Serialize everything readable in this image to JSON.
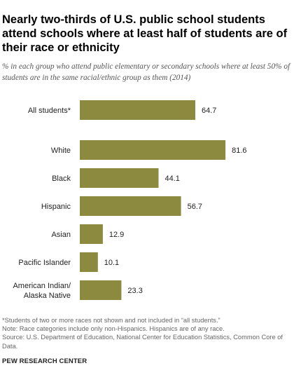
{
  "title": "Nearly two-thirds of U.S. public school students attend schools where at least half of students are of their race or ethnicity",
  "subtitle": "% in each group who attend public elementary or secondary schools where at least 50% of students are in the same racial/ethnic group as them (2014)",
  "notes": [
    "*Students of two or more races not shown and not included in “all students.”",
    "Note: Race categories include only non-Hispanics. Hispanics are of any race.",
    "Source: U.S. Department of Education, National Center for Education Statistics, Common Core of Data."
  ],
  "brand": "PEW RESEARCH CENTER",
  "colors": {
    "bar": "#8c8a3e",
    "label": "#222222"
  },
  "chart_data": {
    "type": "bar",
    "orientation": "horizontal",
    "categories": [
      [
        "All students*"
      ],
      [
        "White"
      ],
      [
        "Black"
      ],
      [
        "Hispanic"
      ],
      [
        "Asian"
      ],
      [
        "Pacific Islander"
      ],
      [
        "American Indian/",
        "Alaska Native"
      ]
    ],
    "values": [
      64.7,
      81.6,
      44.1,
      56.7,
      12.9,
      10.1,
      23.3
    ],
    "value_labels": [
      "64.7",
      "81.6",
      "44.1",
      "56.7",
      "12.9",
      "10.1",
      "23.3"
    ],
    "xlim": [
      0,
      100
    ],
    "grid": false,
    "legend": "none"
  }
}
